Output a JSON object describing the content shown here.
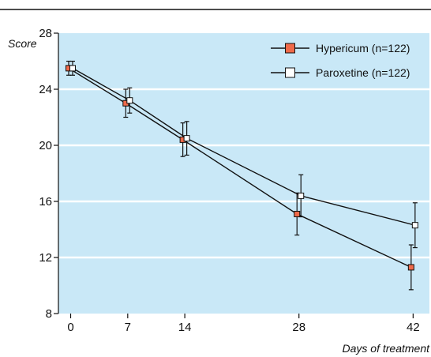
{
  "chart_data": {
    "type": "line",
    "title": "",
    "xlabel": "Days of treatment",
    "ylabel": "Score",
    "xlim": [
      -1.5,
      44
    ],
    "ylim": [
      8,
      28
    ],
    "x_ticks": [
      0,
      7,
      14,
      28,
      42
    ],
    "y_ticks": [
      8,
      12,
      16,
      20,
      24,
      28
    ],
    "grid": "horizontal",
    "legend_position": "top-right",
    "background_color": "#c9e8f7",
    "series": [
      {
        "name": "Hypericum (n=122)",
        "marker": "filled-square",
        "marker_color": "#ef6a4a",
        "x": [
          0,
          7,
          14,
          28,
          42
        ],
        "y": [
          25.5,
          23.0,
          20.4,
          15.1,
          11.3
        ],
        "error": [
          0.5,
          1.0,
          1.2,
          1.5,
          1.6
        ]
      },
      {
        "name": "Paroxetine (n=122)",
        "marker": "open-square",
        "marker_color": "#ffffff",
        "x": [
          0,
          7,
          14,
          28,
          42
        ],
        "y": [
          25.5,
          23.2,
          20.5,
          16.4,
          14.3
        ],
        "error": [
          0.5,
          0.9,
          1.2,
          1.5,
          1.6
        ]
      }
    ]
  }
}
